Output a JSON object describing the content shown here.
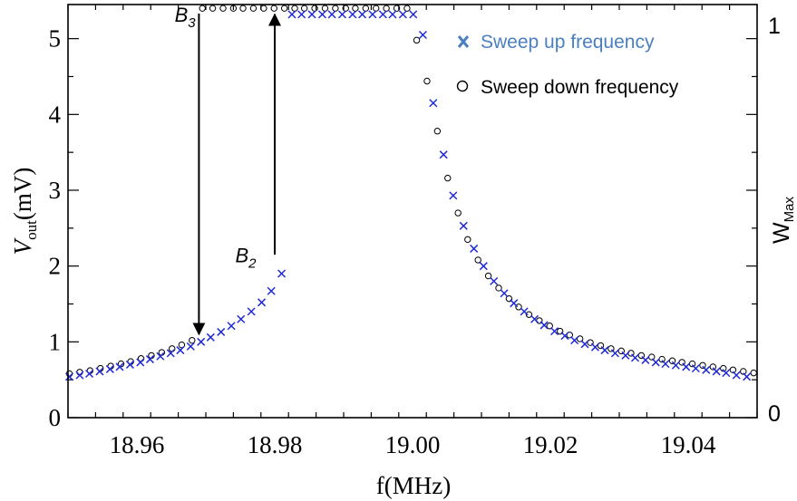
{
  "chart_data": {
    "type": "scatter",
    "xlabel": "f(MHz)",
    "ylabel_main": "V",
    "ylabel_sub": "out",
    "ylabel_unit": "(mV)",
    "y2label_main": "W",
    "y2label_sub": "Max",
    "xlim": [
      18.95,
      19.05
    ],
    "ylim": [
      0,
      5.45
    ],
    "y2lim": [
      0,
      1
    ],
    "x_ticks": [
      "18.96",
      "18.98",
      "19.00",
      "19.02",
      "19.04"
    ],
    "x_tick_values": [
      18.96,
      18.98,
      19.0,
      19.02,
      19.04
    ],
    "y_ticks": [
      "0",
      "1",
      "2",
      "3",
      "4",
      "5"
    ],
    "y_tick_values": [
      0,
      1,
      2,
      3,
      4,
      5
    ],
    "y2_ticks": [
      "0",
      "1"
    ],
    "y2_tick_values": [
      0,
      1
    ],
    "colors": {
      "up": "#1f2ad6",
      "down": "#000000",
      "legend_up_text": "#4a7fc1"
    },
    "legend": {
      "up_marker": "x",
      "up_label": "Sweep up frequency",
      "down_marker": "o",
      "down_label": "Sweep down frequency",
      "placement": "top-right"
    },
    "annotations": [
      {
        "base": "B",
        "sub": "3",
        "x": 18.9685,
        "y": 5.22
      },
      {
        "base": "B",
        "sub": "2",
        "x": 18.9773,
        "y": 2.05
      }
    ],
    "arrows": [
      {
        "x": 18.969,
        "y_from": 5.33,
        "y_to": 1.1,
        "direction": "down"
      },
      {
        "x": 18.98,
        "y_from": 2.15,
        "y_to": 5.32,
        "direction": "up"
      }
    ],
    "series": [
      {
        "name": "Sweep up frequency",
        "marker": "x",
        "x": [
          18.9502,
          18.9517,
          18.9531,
          18.9546,
          18.9561,
          18.9575,
          18.959,
          18.9605,
          18.9619,
          18.9634,
          18.9649,
          18.9663,
          18.9678,
          18.9693,
          18.9707,
          18.9722,
          18.9737,
          18.9751,
          18.9766,
          18.9781,
          18.9795,
          18.981,
          18.9825,
          18.9839,
          18.9854,
          18.9869,
          18.9883,
          18.9898,
          18.9913,
          18.9927,
          18.9942,
          18.9957,
          18.9971,
          18.9986,
          19.0001,
          19.0015,
          19.003,
          19.0045,
          19.0059,
          19.0074,
          19.0089,
          19.0103,
          19.0118,
          19.0133,
          19.0147,
          19.0162,
          19.0177,
          19.0191,
          19.0206,
          19.0221,
          19.0235,
          19.025,
          19.0265,
          19.0279,
          19.0294,
          19.0309,
          19.0323,
          19.0338,
          19.0353,
          19.0367,
          19.0382,
          19.0397,
          19.0411,
          19.0426,
          19.0441,
          19.0455,
          19.047,
          19.0485
        ],
        "y": [
          0.54,
          0.56,
          0.58,
          0.61,
          0.64,
          0.67,
          0.7,
          0.73,
          0.77,
          0.81,
          0.85,
          0.89,
          0.94,
          1.0,
          1.06,
          1.13,
          1.21,
          1.3,
          1.4,
          1.52,
          1.67,
          1.9,
          5.32,
          5.32,
          5.32,
          5.32,
          5.32,
          5.32,
          5.32,
          5.32,
          5.32,
          5.32,
          5.32,
          5.32,
          5.32,
          5.05,
          4.15,
          3.47,
          2.93,
          2.53,
          2.23,
          2.0,
          1.8,
          1.64,
          1.51,
          1.4,
          1.3,
          1.22,
          1.14,
          1.08,
          1.02,
          0.97,
          0.93,
          0.89,
          0.85,
          0.82,
          0.79,
          0.76,
          0.73,
          0.71,
          0.69,
          0.67,
          0.65,
          0.63,
          0.61,
          0.59,
          0.56,
          0.54
        ]
      },
      {
        "name": "Sweep down frequency",
        "marker": "o",
        "x": [
          18.9502,
          18.9517,
          18.9532,
          18.9547,
          18.9562,
          18.9577,
          18.9591,
          18.9606,
          18.9621,
          18.9636,
          18.9651,
          18.9665,
          18.968,
          18.9695,
          18.971,
          18.9725,
          18.974,
          18.9754,
          18.9769,
          18.9784,
          18.9799,
          18.9814,
          18.9829,
          18.9843,
          18.9858,
          18.9873,
          18.9888,
          18.9903,
          18.9917,
          18.9932,
          18.9947,
          18.9962,
          18.9977,
          18.9992,
          19.0006,
          19.0021,
          19.0036,
          19.0051,
          19.0066,
          19.008,
          19.0095,
          19.011,
          19.0125,
          19.014,
          19.0154,
          19.0169,
          19.0184,
          19.0199,
          19.0214,
          19.0228,
          19.0243,
          19.0258,
          19.0273,
          19.0288,
          19.0303,
          19.0317,
          19.0332,
          19.0347,
          19.0362,
          19.0377,
          19.0391,
          19.0406,
          19.0421,
          19.0436,
          19.0451,
          19.0465,
          19.048,
          19.0495
        ],
        "y": [
          0.58,
          0.6,
          0.62,
          0.65,
          0.68,
          0.71,
          0.74,
          0.78,
          0.82,
          0.86,
          0.91,
          0.96,
          1.02,
          5.4,
          5.4,
          5.4,
          5.4,
          5.4,
          5.4,
          5.4,
          5.4,
          5.4,
          5.4,
          5.4,
          5.4,
          5.4,
          5.4,
          5.4,
          5.4,
          5.4,
          5.4,
          5.4,
          5.4,
          5.4,
          4.98,
          4.44,
          3.78,
          3.16,
          2.7,
          2.35,
          2.08,
          1.87,
          1.71,
          1.57,
          1.46,
          1.36,
          1.28,
          1.21,
          1.14,
          1.09,
          1.04,
          0.99,
          0.95,
          0.91,
          0.88,
          0.85,
          0.82,
          0.8,
          0.77,
          0.75,
          0.73,
          0.71,
          0.69,
          0.67,
          0.65,
          0.63,
          0.61,
          0.59
        ]
      }
    ]
  }
}
